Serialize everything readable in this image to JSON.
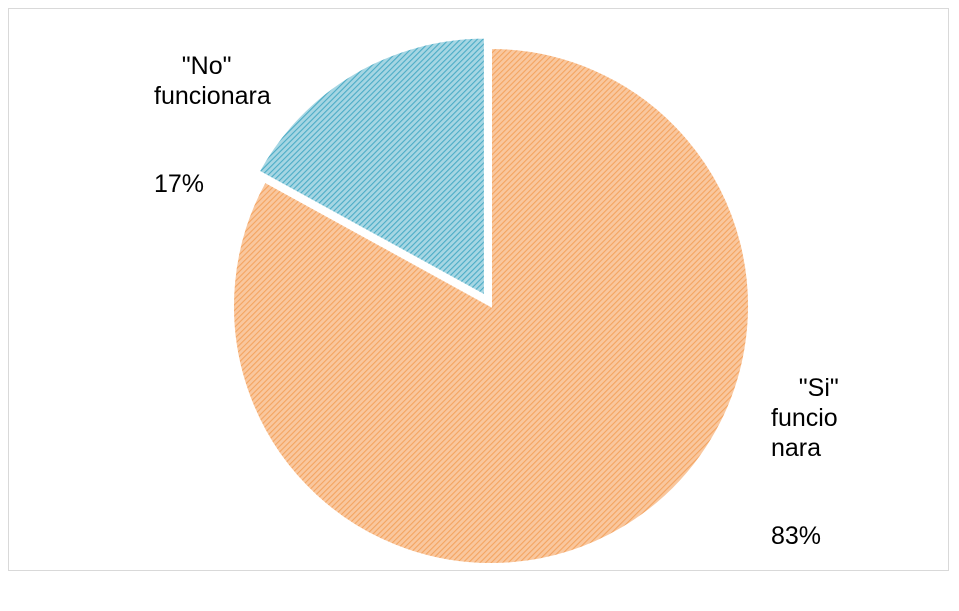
{
  "chart_data": {
    "type": "pie",
    "title": "",
    "slices": [
      {
        "label": "\"Si\" funcionara",
        "value": 83,
        "value_label": "83%",
        "color": "#f4a460",
        "hatch_color": "#f9c79e",
        "exploded": false
      },
      {
        "label": "\"No\" funcionara",
        "value": 17,
        "value_label": "17%",
        "color": "#4bacc6",
        "hatch_color": "#a6d6e3",
        "exploded": true
      }
    ],
    "start_angle": "12 o'clock, clockwise",
    "legend": "none",
    "pattern": "diagonal hatch"
  }
}
